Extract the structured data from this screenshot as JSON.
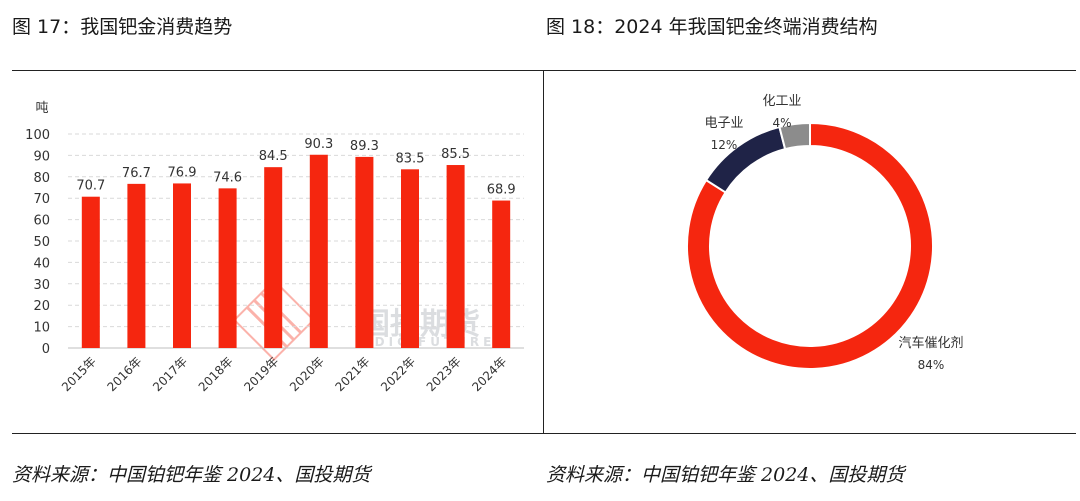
{
  "left_figure": {
    "title": "图 17：我国钯金消费趋势",
    "source": "资料来源：中国铂钯年鉴 2024、国投期货"
  },
  "right_figure": {
    "title": "图 18：2024 年我国钯金终端消费结构",
    "source": "资料来源：中国铂钯年鉴 2024、国投期货"
  },
  "watermark": {
    "text_cn": "国投期货",
    "text_en": "SDIC FUTURES"
  },
  "colors": {
    "red": "#f5260f",
    "navy": "#1f2347",
    "gray": "#8c8c8c",
    "grid": "#d9d9d9"
  },
  "chart_data": [
    {
      "type": "bar",
      "unit_label": "吨",
      "categories": [
        "2015年",
        "2016年",
        "2017年",
        "2018年",
        "2019年",
        "2020年",
        "2021年",
        "2022年",
        "2023年",
        "2024年"
      ],
      "values": [
        70.7,
        76.7,
        76.9,
        74.6,
        84.5,
        90.3,
        89.3,
        83.5,
        85.5,
        68.9
      ],
      "data_labels": [
        "70.7",
        "76.7",
        "76.9",
        "74.6",
        "84.5",
        "90.3",
        "89.3",
        "83.5",
        "85.5",
        "68.9"
      ],
      "ylim": [
        0,
        100
      ],
      "yticks": [
        "0",
        "10",
        "20",
        "30",
        "40",
        "50",
        "60",
        "70",
        "80",
        "90",
        "100"
      ],
      "grid": true,
      "bar_color": "#f5260f"
    },
    {
      "type": "pie",
      "donut": true,
      "slices": [
        {
          "label": "汽车催化剂",
          "value": 84,
          "value_label": "84%",
          "color": "#f5260f"
        },
        {
          "label": "电子业",
          "value": 12,
          "value_label": "12%",
          "color": "#1f2347"
        },
        {
          "label": "化工业",
          "value": 4,
          "value_label": "4%",
          "color": "#8c8c8c"
        }
      ]
    }
  ]
}
